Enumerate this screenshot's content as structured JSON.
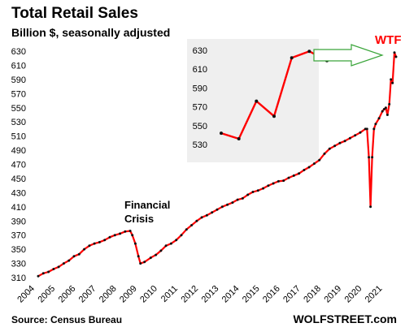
{
  "header": {
    "title": "Total Retail Sales",
    "subtitle": "Billion $, seasonally adjusted"
  },
  "footer": {
    "source": "Source: Census Bureau",
    "brand": "WOLFSTREET.com"
  },
  "annotations": {
    "financial_crisis_line1": "Financial",
    "financial_crisis_line2": "Crisis",
    "wtf": "WTF"
  },
  "colors": {
    "line": "#ff0000",
    "markers": "#111111",
    "inset_background": "#efefef",
    "arrow": "#3aa53a",
    "wtf": "#ff0000"
  },
  "chart_data": [
    {
      "type": "line",
      "title": "Total Retail Sales",
      "subtitle": "Billion $, seasonally adjusted",
      "x_tick_labels": [
        "2004",
        "2005",
        "2006",
        "2007",
        "2008",
        "2009",
        "2010",
        "2011",
        "2012",
        "2013",
        "2014",
        "2015",
        "2016",
        "2017",
        "2018",
        "2019",
        "2020",
        "2021"
      ],
      "y_tick_labels": [
        "310",
        "330",
        "350",
        "370",
        "390",
        "410",
        "430",
        "450",
        "470",
        "490",
        "510",
        "530",
        "550",
        "570",
        "590",
        "610",
        "630"
      ],
      "xlim": [
        2004,
        2021.5
      ],
      "ylim": [
        305,
        638
      ],
      "grid": false,
      "series": [
        {
          "x": [
            2004.0,
            2004.25,
            2004.5,
            2004.75,
            2005.0,
            2005.25,
            2005.5,
            2005.75,
            2006.0,
            2006.25,
            2006.5,
            2006.75,
            2007.0,
            2007.25,
            2007.5,
            2007.75,
            2008.0,
            2008.25,
            2008.5,
            2008.6,
            2008.75,
            2008.9,
            2009.0,
            2009.2,
            2009.5,
            2009.75,
            2010.0,
            2010.25,
            2010.5,
            2010.75,
            2011.0,
            2011.25,
            2011.5,
            2011.75,
            2012.0,
            2012.25,
            2012.5,
            2012.75,
            2013.0,
            2013.25,
            2013.5,
            2013.75,
            2014.0,
            2014.25,
            2014.5,
            2014.75,
            2015.0,
            2015.25,
            2015.5,
            2015.75,
            2016.0,
            2016.25,
            2016.5,
            2016.75,
            2017.0,
            2017.25,
            2017.5,
            2017.75,
            2018.0,
            2018.25,
            2018.5,
            2018.75,
            2019.0,
            2019.25,
            2019.5,
            2019.75,
            2020.0,
            2020.08,
            2020.17,
            2020.25,
            2020.33,
            2020.42,
            2020.5,
            2020.67,
            2020.83,
            2020.92,
            2021.0,
            2021.08,
            2021.17,
            2021.25,
            2021.33,
            2021.42,
            2021.5
          ],
          "values": [
            312,
            316,
            318,
            322,
            325,
            330,
            334,
            340,
            343,
            350,
            355,
            358,
            360,
            363,
            367,
            370,
            372,
            375,
            376,
            370,
            358,
            340,
            330,
            332,
            338,
            342,
            348,
            355,
            358,
            363,
            370,
            378,
            384,
            390,
            395,
            398,
            402,
            406,
            410,
            413,
            416,
            420,
            422,
            427,
            431,
            433,
            436,
            440,
            443,
            446,
            447,
            451,
            454,
            457,
            462,
            466,
            471,
            476,
            485,
            492,
            496,
            500,
            503,
            507,
            511,
            515,
            520,
            520,
            480,
            410,
            480,
            520,
            527,
            535,
            545,
            548,
            550,
            540,
            555,
            590,
            585,
            628,
            622
          ]
        }
      ]
    },
    {
      "type": "line",
      "title": "",
      "y_tick_labels": [
        "530",
        "550",
        "570",
        "590",
        "610",
        "630"
      ],
      "ylim": [
        524,
        640
      ],
      "grid": false,
      "series": [
        {
          "x": [
            1,
            2,
            3,
            4,
            5,
            6,
            7
          ],
          "values": [
            542,
            536,
            576,
            560,
            622,
            629,
            619
          ]
        }
      ]
    }
  ]
}
